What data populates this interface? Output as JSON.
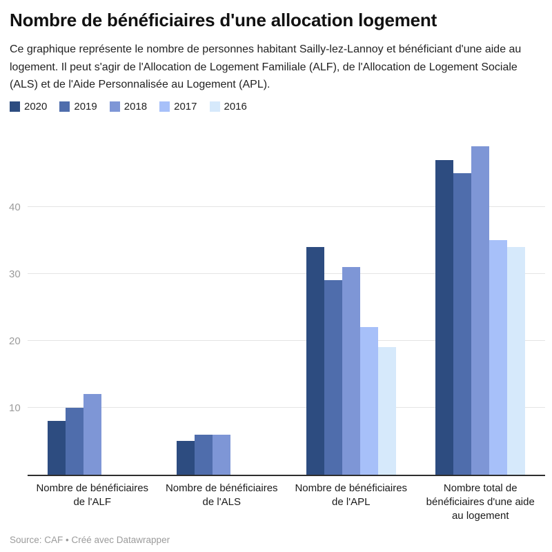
{
  "header": {
    "title": "Nombre de bénéficiaires d'une allocation logement",
    "description": "Ce graphique représente le nombre de personnes habitant Sailly-lez-Lannoy et bénéficiant d'une aide au logement. Il peut s'agir de l'Allocation de Logement Familiale (ALF), de l'Allocation de Logement Sociale (ALS) et de l'Aide Personnalisée au Logement (APL)."
  },
  "chart_data": {
    "type": "bar",
    "title": "Nombre de bénéficiaires d'une allocation logement",
    "categories": [
      "Nombre de bénéficiaires de l'ALF",
      "Nombre de bénéficiaires de l'ALS",
      "Nombre de bénéficiaires de l'APL",
      "Nombre total de bénéficiaires d'une aide au logement"
    ],
    "series": [
      {
        "name": "2020",
        "color": "#2d4c80",
        "values": [
          8,
          5,
          34,
          47
        ]
      },
      {
        "name": "2019",
        "color": "#4f6dac",
        "values": [
          10,
          6,
          29,
          45
        ]
      },
      {
        "name": "2018",
        "color": "#7e96d6",
        "values": [
          12,
          6,
          31,
          49
        ]
      },
      {
        "name": "2017",
        "color": "#a7c0f9",
        "values": [
          null,
          null,
          22,
          35
        ]
      },
      {
        "name": "2016",
        "color": "#d6e9fb",
        "values": [
          null,
          null,
          19,
          34
        ]
      }
    ],
    "xlabel": "",
    "ylabel": "",
    "ylim": [
      0,
      50
    ],
    "yticks": [
      10,
      20,
      30,
      40
    ],
    "grid": true,
    "legend_position": "top-left"
  },
  "footer": {
    "source_line": "Source: CAF • Créé avec Datawrapper"
  },
  "colors": {
    "background": "#ffffff",
    "axis_line": "#2d2d2d",
    "gridline": "#e4e4e4",
    "tick_label": "#9b9b9b",
    "title_text": "#111111",
    "body_text": "#222222"
  }
}
